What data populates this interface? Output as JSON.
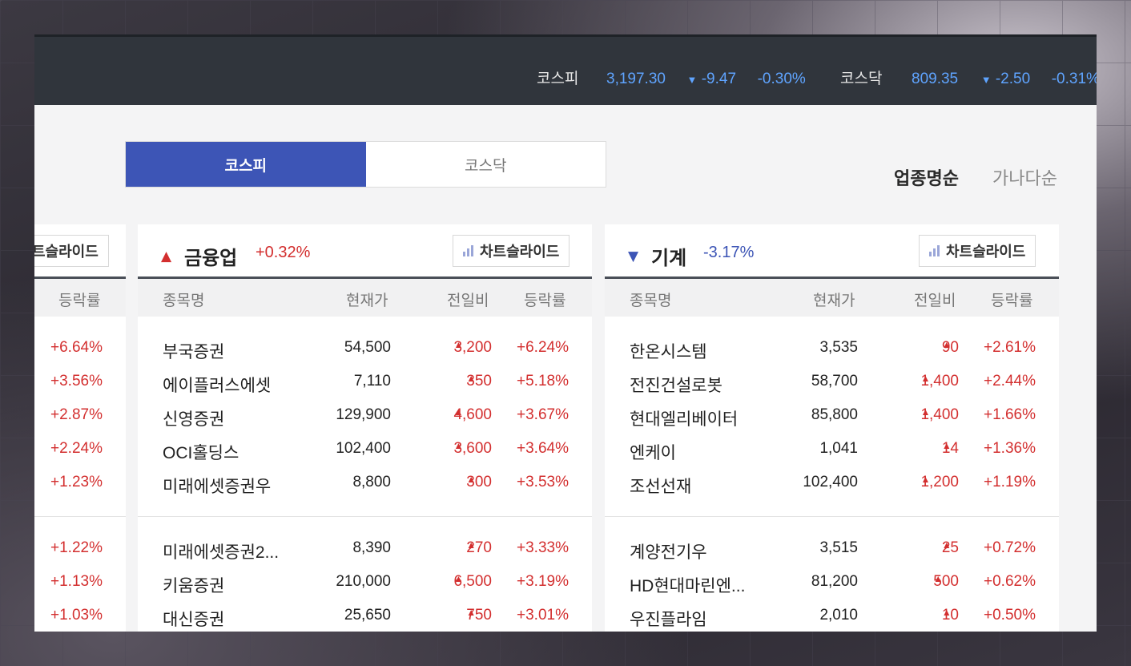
{
  "indices": [
    {
      "name": "코스피",
      "value": "3,197.30",
      "change": "-9.47",
      "rate": "-0.30%"
    },
    {
      "name": "코스닥",
      "value": "809.35",
      "change": "-2.50",
      "rate": "-0.31%"
    }
  ],
  "market_tabs": [
    "코스피",
    "코스닥"
  ],
  "sort_options": [
    "업종명순",
    "가나다순"
  ],
  "columns": {
    "name": "종목명",
    "price": "현재가",
    "change": "전일비",
    "rate": "등락률"
  },
  "slide_button_label": "차트슬라이드",
  "slide_button_label_cut": "트슬라이드",
  "left_partial": {
    "rate_header": "등락률",
    "rates": [
      "+6.64%",
      "+3.56%",
      "+2.87%",
      "+2.24%",
      "+1.23%",
      "+1.22%",
      "+1.13%",
      "+1.03%"
    ]
  },
  "sectors": [
    {
      "name": "금융업",
      "direction": "up",
      "rate": "+0.32%",
      "rows": [
        {
          "name": "부국증권",
          "price": "54,500",
          "change": "3,200",
          "rate": "+6.24%"
        },
        {
          "name": "에이플러스에셋",
          "price": "7,110",
          "change": "350",
          "rate": "+5.18%"
        },
        {
          "name": "신영증권",
          "price": "129,900",
          "change": "4,600",
          "rate": "+3.67%"
        },
        {
          "name": "OCI홀딩스",
          "price": "102,400",
          "change": "3,600",
          "rate": "+3.64%"
        },
        {
          "name": "미래에셋증권우",
          "price": "8,800",
          "change": "300",
          "rate": "+3.53%"
        },
        {
          "name": "미래에셋증권2...",
          "price": "8,390",
          "change": "270",
          "rate": "+3.33%"
        },
        {
          "name": "키움증권",
          "price": "210,000",
          "change": "6,500",
          "rate": "+3.19%"
        },
        {
          "name": "대신증권",
          "price": "25,650",
          "change": "750",
          "rate": "+3.01%"
        }
      ]
    },
    {
      "name": "기계",
      "direction": "down",
      "rate": "-3.17%",
      "rows": [
        {
          "name": "한온시스템",
          "price": "3,535",
          "change": "90",
          "rate": "+2.61%"
        },
        {
          "name": "전진건설로봇",
          "price": "58,700",
          "change": "1,400",
          "rate": "+2.44%"
        },
        {
          "name": "현대엘리베이터",
          "price": "85,800",
          "change": "1,400",
          "rate": "+1.66%"
        },
        {
          "name": "엔케이",
          "price": "1,041",
          "change": "14",
          "rate": "+1.36%"
        },
        {
          "name": "조선선재",
          "price": "102,400",
          "change": "1,200",
          "rate": "+1.19%"
        },
        {
          "name": "계양전기우",
          "price": "3,515",
          "change": "25",
          "rate": "+0.72%"
        },
        {
          "name": "HD현대마린엔...",
          "price": "81,200",
          "change": "500",
          "rate": "+0.62%"
        },
        {
          "name": "우진플라임",
          "price": "2,010",
          "change": "10",
          "rate": "+0.50%"
        }
      ]
    }
  ],
  "colors": {
    "up": "#d32f2f",
    "down": "#3d55b6",
    "accent": "#3d55b6",
    "topbar": "#30353c",
    "index_value": "#5fa4ff"
  }
}
